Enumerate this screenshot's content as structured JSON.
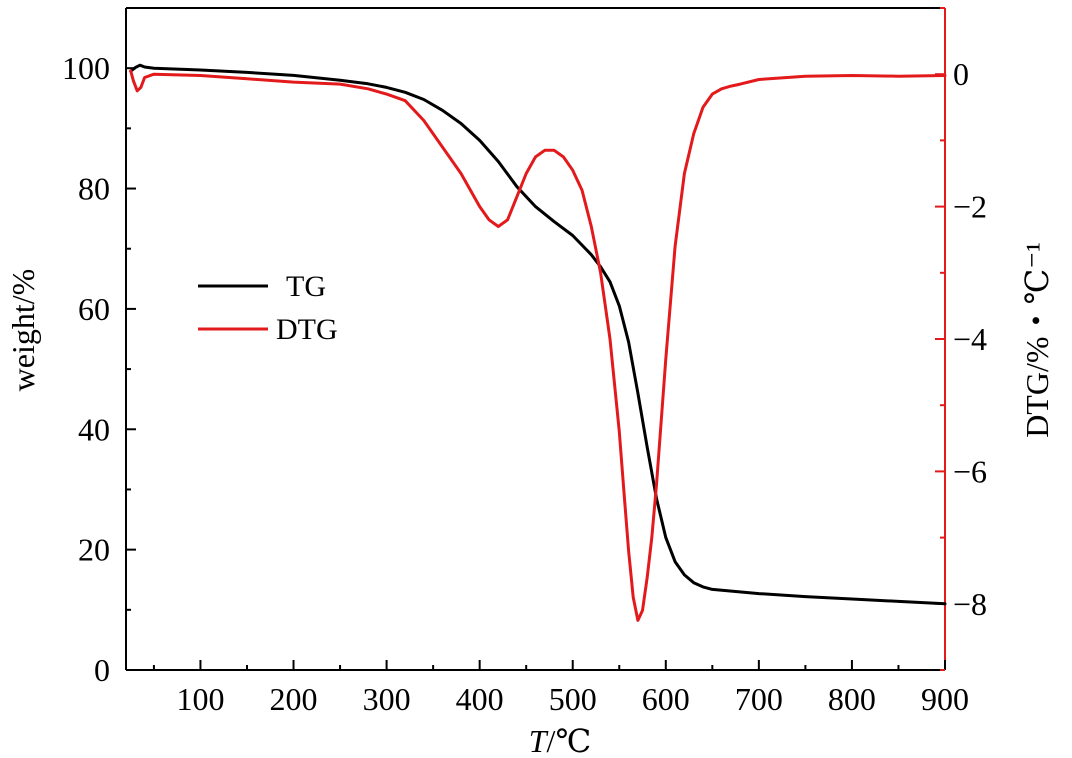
{
  "chart_data": {
    "type": "line",
    "title": "",
    "xlabel_italic": "T",
    "xlabel_unit": "/℃",
    "ylabel": "weight/%",
    "y2label": "DTG/%・℃⁻¹",
    "xlim": [
      20,
      900
    ],
    "ylim": [
      0,
      110
    ],
    "y2lim": [
      -9,
      1
    ],
    "x_ticks": [
      100,
      200,
      300,
      400,
      500,
      600,
      700,
      800,
      900
    ],
    "y_ticks": [
      0,
      20,
      40,
      60,
      80,
      100
    ],
    "y2_ticks": [
      0,
      -2,
      -4,
      -6,
      -8
    ],
    "y2_tick_labels": [
      "0",
      "−2",
      "−4",
      "−6",
      "−8"
    ],
    "legend": {
      "position": "left-middle",
      "entries": [
        "TG",
        "DTG"
      ]
    },
    "grid": false,
    "series": [
      {
        "name": "TG",
        "axis": "left",
        "color": "#000000",
        "x": [
          25,
          30,
          35,
          40,
          50,
          100,
          150,
          200,
          250,
          280,
          300,
          320,
          340,
          360,
          380,
          400,
          420,
          440,
          460,
          480,
          500,
          520,
          530,
          540,
          550,
          560,
          570,
          580,
          590,
          600,
          610,
          620,
          630,
          640,
          650,
          700,
          750,
          800,
          850,
          900
        ],
        "y": [
          99.5,
          100.1,
          100.5,
          100.2,
          100.0,
          99.7,
          99.3,
          98.8,
          98.0,
          97.4,
          96.8,
          96.0,
          94.8,
          93.0,
          90.8,
          88.0,
          84.5,
          80.3,
          77.0,
          74.5,
          72.2,
          69.0,
          67.0,
          64.5,
          60.5,
          54.5,
          46.0,
          37.0,
          28.5,
          22.0,
          18.0,
          15.8,
          14.5,
          13.8,
          13.4,
          12.7,
          12.2,
          11.8,
          11.4,
          11.0
        ]
      },
      {
        "name": "DTG",
        "axis": "right",
        "color": "#e31a1c",
        "x": [
          25,
          28,
          32,
          36,
          40,
          50,
          100,
          150,
          200,
          250,
          280,
          300,
          320,
          340,
          360,
          380,
          400,
          410,
          420,
          430,
          440,
          450,
          460,
          470,
          480,
          490,
          500,
          510,
          520,
          530,
          540,
          550,
          555,
          560,
          565,
          570,
          575,
          580,
          585,
          590,
          600,
          610,
          620,
          630,
          640,
          650,
          660,
          670,
          680,
          700,
          750,
          800,
          850,
          900
        ],
        "y": [
          0.05,
          -0.1,
          -0.25,
          -0.2,
          -0.05,
          0.0,
          -0.02,
          -0.07,
          -0.12,
          -0.15,
          -0.22,
          -0.3,
          -0.4,
          -0.7,
          -1.1,
          -1.5,
          -2.0,
          -2.2,
          -2.3,
          -2.2,
          -1.85,
          -1.5,
          -1.25,
          -1.15,
          -1.15,
          -1.25,
          -1.45,
          -1.75,
          -2.3,
          -3.0,
          -4.0,
          -5.4,
          -6.3,
          -7.2,
          -7.9,
          -8.25,
          -8.1,
          -7.6,
          -7.0,
          -6.2,
          -4.3,
          -2.6,
          -1.5,
          -0.9,
          -0.5,
          -0.3,
          -0.22,
          -0.18,
          -0.15,
          -0.08,
          -0.03,
          -0.02,
          -0.03,
          -0.02
        ]
      }
    ]
  }
}
